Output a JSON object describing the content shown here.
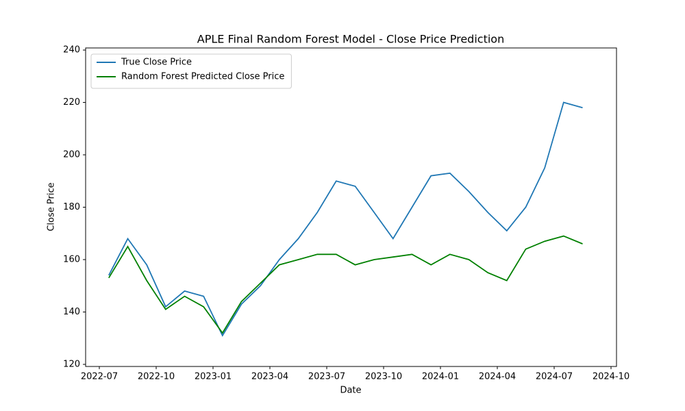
{
  "chart_data": {
    "type": "line",
    "title": "APLE Final Random Forest Model - Close Price Prediction",
    "x_label": "Date",
    "y_label": "Close Price",
    "x": [
      "2022-07",
      "2022-08",
      "2022-09",
      "2022-10",
      "2022-11",
      "2022-12",
      "2023-01",
      "2023-02",
      "2023-03",
      "2023-04",
      "2023-05",
      "2023-06",
      "2023-07",
      "2023-08",
      "2023-09",
      "2023-10",
      "2023-11",
      "2023-12",
      "2024-01",
      "2024-02",
      "2024-03",
      "2024-04",
      "2024-05",
      "2024-06",
      "2024-07",
      "2024-08"
    ],
    "series": [
      {
        "name": "True Close Price",
        "color": "#1f77b4",
        "values": [
          154,
          168,
          158,
          142,
          148,
          146,
          131,
          143,
          150,
          160,
          168,
          178,
          190,
          188,
          178,
          168,
          180,
          192,
          193,
          186,
          178,
          171,
          180,
          195,
          220,
          218
        ]
      },
      {
        "name": "Random Forest Predicted Close Price",
        "color": "#008000",
        "values": [
          153,
          165,
          152,
          141,
          146,
          142,
          132,
          144,
          151,
          158,
          160,
          162,
          162,
          158,
          160,
          161,
          162,
          158,
          162,
          160,
          155,
          152,
          164,
          167,
          169,
          166
        ]
      }
    ],
    "xlim": [
      "2022-07",
      "2024-10"
    ],
    "xticks": [
      "2022-07",
      "2022-10",
      "2023-01",
      "2023-04",
      "2023-07",
      "2023-10",
      "2024-01",
      "2024-04",
      "2024-07",
      "2024-10"
    ],
    "ylim": [
      119.2,
      240.8
    ],
    "yticks": [
      120,
      140,
      160,
      180,
      200,
      220,
      240
    ],
    "legend": "upper left",
    "grid": false
  }
}
